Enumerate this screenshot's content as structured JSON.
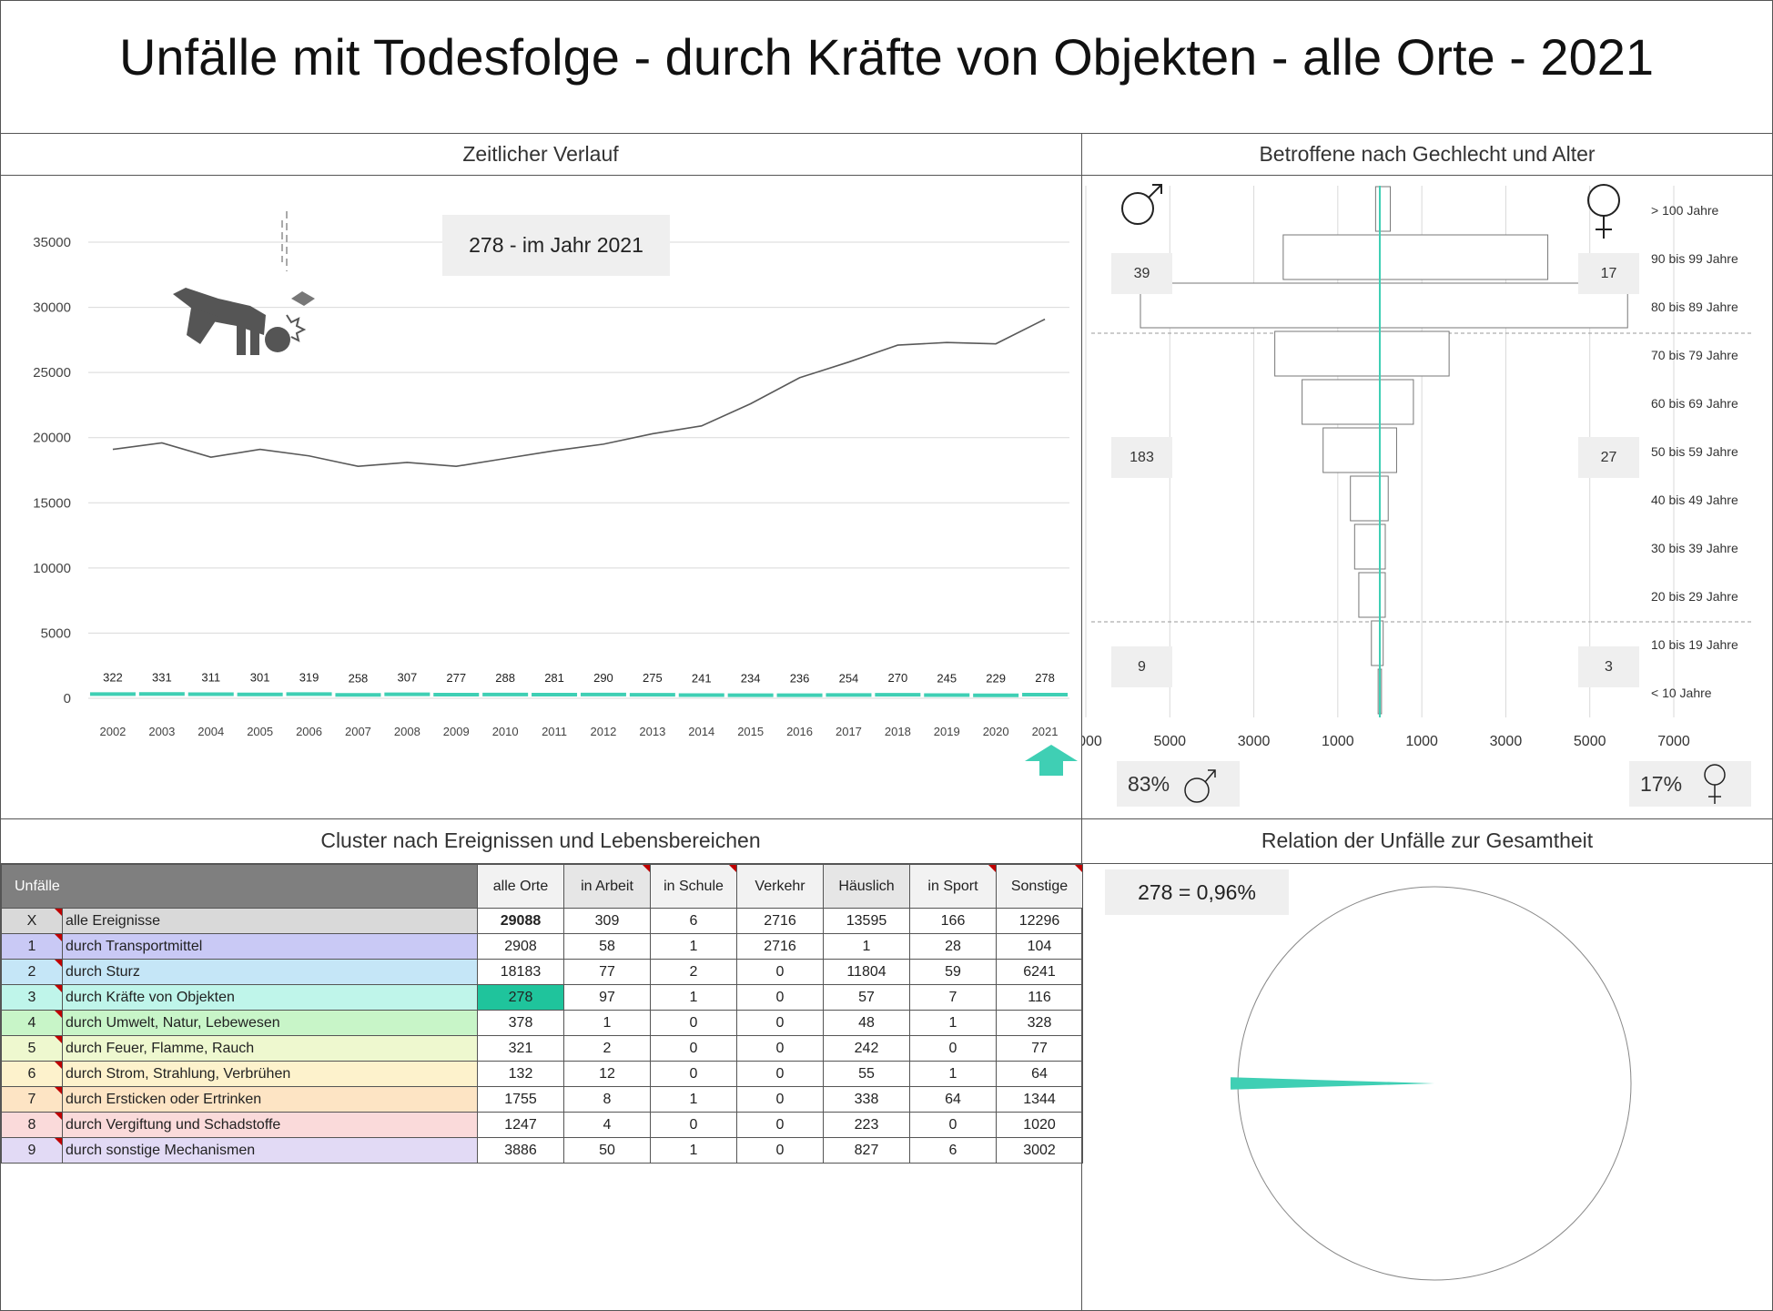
{
  "title": "Unfälle mit Todesfolge - durch Kräfte von Objekten - alle Orte - 2021",
  "colors": {
    "accent": "#3fcfb4",
    "highlight": "#1fc49c",
    "grid": "#d9d9d9"
  },
  "sections": {
    "timeline": "Zeitlicher Verlauf",
    "pyramid": "Betroffene nach Gechlecht und Alter",
    "cluster": "Cluster nach Ereignissen und Lebensbereichen",
    "relation": "Relation der Unfälle zur Gesamtheit"
  },
  "timeline_callout": "278 - im Jahr 2021",
  "pyramid_boxes": {
    "male_90": "39",
    "female_90": "17",
    "male_mid": "183",
    "female_mid": "27",
    "male_young": "9",
    "female_young": "3"
  },
  "gender_share": {
    "male": "83%",
    "female": "17%",
    "male_icon": "male-symbol",
    "female_icon": "female-symbol"
  },
  "relation_callout": "278 =  0,96%",
  "icons": {
    "timeline": "falling-object-person-icon",
    "marker": "up-arrow-icon"
  },
  "chart_data": [
    {
      "type": "line",
      "x": [
        "2002",
        "2003",
        "2004",
        "2005",
        "2006",
        "2007",
        "2008",
        "2009",
        "2010",
        "2011",
        "2012",
        "2013",
        "2014",
        "2015",
        "2016",
        "2017",
        "2018",
        "2019",
        "2020",
        "2021"
      ],
      "series": [
        {
          "color": "#595959",
          "values": [
            19100,
            19600,
            18500,
            19100,
            18600,
            17800,
            18100,
            17800,
            18400,
            19000,
            19500,
            20300,
            20900,
            22600,
            24600,
            25800,
            27100,
            27300,
            27200,
            29088
          ]
        },
        {
          "color": "#3fcfb4",
          "values": [
            322,
            331,
            311,
            301,
            319,
            258,
            307,
            277,
            288,
            281,
            290,
            275,
            241,
            234,
            236,
            254,
            270,
            245,
            229,
            278
          ]
        }
      ],
      "data_labels": [
        "322",
        "331",
        "311",
        "301",
        "319",
        "258",
        "307",
        "277",
        "288",
        "281",
        "290",
        "275",
        "241",
        "234",
        "236",
        "254",
        "270",
        "245",
        "229",
        "278"
      ],
      "yticks": [
        "0",
        "5000",
        "10000",
        "15000",
        "20000",
        "25000",
        "30000",
        "35000"
      ],
      "ylim": [
        0,
        35000
      ],
      "grid": true
    },
    {
      "type": "bar",
      "orientation": "horizontal-butterfly",
      "categories": [
        "> 100 Jahre",
        "90 bis 99 Jahre",
        "80 bis 89 Jahre",
        "70 bis 79 Jahre",
        "60 bis 69 Jahre",
        "50 bis 59 Jahre",
        "40 bis 49 Jahre",
        "30 bis 39 Jahre",
        "20 bis 29 Jahre",
        "10 bis 19 Jahre",
        "< 10 Jahre"
      ],
      "series": [
        {
          "side": "male",
          "values": [
            100,
            2300,
            5700,
            2500,
            1850,
            1350,
            700,
            600,
            500,
            200,
            40
          ]
        },
        {
          "side": "female",
          "values": [
            250,
            4000,
            5900,
            1650,
            800,
            400,
            200,
            130,
            130,
            80,
            40
          ]
        }
      ],
      "xticks": [
        "7000",
        "5000",
        "3000",
        "1000",
        "1000",
        "3000",
        "5000",
        "7000"
      ],
      "xlim": [
        -7000,
        7000
      ],
      "grid": true
    },
    {
      "type": "pie",
      "values": [
        278,
        28810
      ],
      "shares": [
        0.0096,
        0.9904
      ],
      "colors": [
        "#3fcfb4",
        "#ffffff"
      ]
    }
  ],
  "table": {
    "header": [
      "Unfälle",
      "alle Orte",
      "in Arbeit",
      "in Schule",
      "Verkehr",
      "Häuslich",
      "in Sport",
      "Sonstige"
    ],
    "rows": [
      {
        "id": "X",
        "label": "alle Ereignisse",
        "color": "#d9d9d9",
        "values": [
          "29088",
          "309",
          "6",
          "2716",
          "13595",
          "166",
          "12296"
        ]
      },
      {
        "id": "1",
        "label": "durch Transportmittel",
        "color": "#c9c9f5",
        "values": [
          "2908",
          "58",
          "1",
          "2716",
          "1",
          "28",
          "104"
        ]
      },
      {
        "id": "2",
        "label": "durch Sturz",
        "color": "#c5e6f7",
        "values": [
          "18183",
          "77",
          "2",
          "0",
          "11804",
          "59",
          "6241"
        ]
      },
      {
        "id": "3",
        "label": "durch Kräfte von Objekten",
        "color": "#bff5ea",
        "values": [
          "278",
          "97",
          "1",
          "0",
          "57",
          "7",
          "116"
        ]
      },
      {
        "id": "4",
        "label": "durch Umwelt, Natur, Lebewesen",
        "color": "#c8f5c8",
        "values": [
          "378",
          "1",
          "0",
          "0",
          "48",
          "1",
          "328"
        ]
      },
      {
        "id": "5",
        "label": "durch Feuer, Flamme, Rauch",
        "color": "#eef8cf",
        "values": [
          "321",
          "2",
          "0",
          "0",
          "242",
          "0",
          "77"
        ]
      },
      {
        "id": "6",
        "label": "durch Strom, Strahlung, Verbrühen",
        "color": "#fdf2cc",
        "values": [
          "132",
          "12",
          "0",
          "0",
          "55",
          "1",
          "64"
        ]
      },
      {
        "id": "7",
        "label": "durch Ersticken oder Ertrinken",
        "color": "#fde4c4",
        "values": [
          "1755",
          "8",
          "1",
          "0",
          "338",
          "64",
          "1344"
        ]
      },
      {
        "id": "8",
        "label": "durch Vergiftung und Schadstoffe",
        "color": "#fadada",
        "values": [
          "1247",
          "4",
          "0",
          "0",
          "223",
          "0",
          "1020"
        ]
      },
      {
        "id": "9",
        "label": "durch sonstige Mechanismen",
        "color": "#e2daf5",
        "values": [
          "3886",
          "50",
          "1",
          "0",
          "827",
          "6",
          "3002"
        ]
      }
    ]
  }
}
